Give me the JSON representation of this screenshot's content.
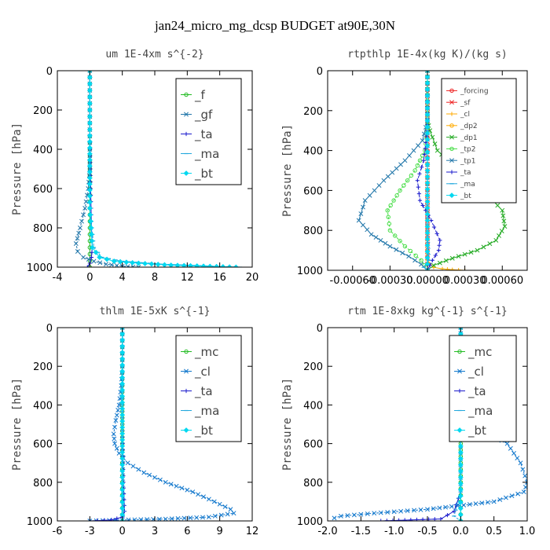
{
  "figure_title": "jan24_micro_mg_dcsp  BUDGET at90E,30N",
  "colors": {
    "f": "#22bb22",
    "gf": "#2277aa",
    "ta": "#1a1acc",
    "ma": "#22a8dd",
    "bt": "#00d8f0",
    "forcing": "#ee2222",
    "sf": "#ee2222",
    "cl_rt": "#ffaa00",
    "dp2": "#ffaa00",
    "dp1": "#22aa22",
    "tp2": "#44dd44",
    "tp1": "#2277aa",
    "mc": "#22bb22",
    "cl": "#1177cc"
  },
  "chart_data": [
    {
      "type": "line",
      "title": "um  1E-4xm s^{-2}",
      "ylabel": "Pressure [hPa]",
      "xlim": [
        -4,
        20
      ],
      "ylim": [
        1000,
        0
      ],
      "xticks": [
        -4,
        0,
        4,
        8,
        12,
        16,
        20
      ],
      "xtick_labels": [
        "-4",
        "0",
        "4",
        "8",
        "12",
        "16",
        "20"
      ],
      "yticks": [
        0,
        200,
        400,
        600,
        800,
        1000
      ],
      "ytick_labels": [
        "0",
        "200",
        "400",
        "600",
        "800",
        "1000"
      ],
      "legend": "top-right",
      "series": [
        {
          "name": "_f",
          "color": "#22bb22",
          "marker": "circle",
          "x": [
            0,
            0,
            0,
            0,
            0,
            0,
            0,
            0,
            0,
            0,
            0
          ],
          "y": [
            0,
            100,
            200,
            300,
            400,
            500,
            600,
            700,
            800,
            900,
            1000
          ]
        },
        {
          "name": "_gf",
          "color": "#2277aa",
          "marker": "x",
          "x": [
            0,
            0,
            0,
            -0.2,
            -0.6,
            -1.2,
            -1.7,
            -1.5,
            -0.8,
            0.5,
            2,
            4,
            6
          ],
          "y": [
            0,
            200,
            500,
            600,
            700,
            800,
            880,
            920,
            950,
            970,
            985,
            995,
            1000
          ]
        },
        {
          "name": "_ta",
          "color": "#1a1acc",
          "marker": "plus",
          "x": [
            0,
            0,
            0.1,
            0.2,
            0.3,
            0.2,
            0,
            -0.3
          ],
          "y": [
            0,
            300,
            600,
            800,
            900,
            950,
            980,
            1000
          ]
        },
        {
          "name": "_ma",
          "color": "#22a8dd",
          "marker": "dash",
          "x": [
            0,
            0,
            0,
            0.5,
            1.5,
            4,
            9,
            15,
            18.5
          ],
          "y": [
            0,
            300,
            700,
            900,
            950,
            970,
            985,
            995,
            1000
          ]
        },
        {
          "name": "_bt",
          "color": "#00d8f0",
          "marker": "diamond",
          "x": [
            0,
            0,
            0,
            0.3,
            1.2,
            3,
            6,
            10,
            14,
            18
          ],
          "y": [
            0,
            300,
            700,
            900,
            950,
            970,
            980,
            990,
            995,
            1000
          ]
        }
      ]
    },
    {
      "type": "line",
      "title": "rtpthlp  1E-4x(kg K)/(kg s)",
      "ylabel": "Pressure [hPa]",
      "xlim": [
        -0.0008,
        0.0008
      ],
      "ylim": [
        1000,
        0
      ],
      "xticks": [
        -0.0006,
        -0.0003,
        0,
        0.0003,
        0.0006
      ],
      "xtick_labels": [
        "-0.00060",
        "-0.00030",
        "0.00000",
        "0.00030",
        "0.00060"
      ],
      "yticks": [
        0,
        200,
        400,
        600,
        800,
        1000
      ],
      "ytick_labels": [
        "0",
        "200",
        "400",
        "600",
        "800",
        "1000"
      ],
      "legend": "top-right",
      "series": [
        {
          "name": "_forcing",
          "color": "#ee2222",
          "marker": "circle",
          "x": [
            0,
            0,
            0,
            0,
            0,
            0,
            0,
            0,
            0,
            0,
            0
          ],
          "y": [
            0,
            100,
            200,
            300,
            400,
            500,
            600,
            700,
            800,
            900,
            1000
          ]
        },
        {
          "name": "_sf",
          "color": "#ee2222",
          "marker": "x",
          "x": [
            0,
            0
          ],
          "y": [
            0,
            1000
          ]
        },
        {
          "name": "_cl",
          "color": "#ffaa00",
          "marker": "plus",
          "x": [
            0,
            0,
            0,
            5e-05,
            0.00012,
            0.0002,
            0.0003
          ],
          "y": [
            0,
            800,
            950,
            985,
            993,
            997,
            1000
          ]
        },
        {
          "name": "_dp2",
          "color": "#ffaa00",
          "marker": "circle",
          "x": [
            0,
            0
          ],
          "y": [
            0,
            1000
          ]
        },
        {
          "name": "_dp1",
          "color": "#22aa22",
          "marker": "x",
          "x": [
            0,
            0,
            2e-05,
            8e-05,
            0.00025,
            0.00045,
            0.0006,
            0.00062,
            0.00055,
            0.0004,
            0.0002,
            5e-05,
            0
          ],
          "y": [
            0,
            250,
            300,
            400,
            500,
            600,
            700,
            780,
            850,
            900,
            940,
            975,
            1000
          ]
        },
        {
          "name": "_tp2",
          "color": "#44dd44",
          "marker": "circle",
          "x": [
            0,
            0,
            -2e-05,
            -0.0001,
            -0.00022,
            -0.00032,
            -0.0003,
            -0.00018,
            -5e-05,
            0
          ],
          "y": [
            0,
            300,
            400,
            500,
            600,
            700,
            800,
            880,
            950,
            1000
          ]
        },
        {
          "name": "_tp1",
          "color": "#2277aa",
          "marker": "x",
          "x": [
            0,
            0,
            -4e-05,
            -0.00018,
            -0.00035,
            -0.0005,
            -0.00055,
            -0.00045,
            -0.0003,
            -0.00015,
            -5e-05,
            0
          ],
          "y": [
            0,
            250,
            350,
            450,
            550,
            650,
            750,
            820,
            880,
            930,
            970,
            1000
          ]
        },
        {
          "name": "_ta",
          "color": "#1a1acc",
          "marker": "plus",
          "x": [
            0,
            0,
            -3e-05,
            -8e-05,
            -6e-05,
            3e-05,
            0.0001,
            9e-05,
            4e-05,
            0
          ],
          "y": [
            0,
            300,
            450,
            550,
            650,
            750,
            850,
            900,
            950,
            1000
          ]
        },
        {
          "name": "_ma",
          "color": "#22a8dd",
          "marker": "dash",
          "x": [
            0,
            0,
            1e-05,
            -3e-05,
            0
          ],
          "y": [
            0,
            800,
            950,
            985,
            1000
          ]
        },
        {
          "name": "_bt",
          "color": "#00d8f0",
          "marker": "diamond",
          "x": [
            0,
            0
          ],
          "y": [
            0,
            1000
          ]
        }
      ]
    },
    {
      "type": "line",
      "title": "thlm  1E-5xK s^{-1}",
      "ylabel": "Pressure [hPa]",
      "xlim": [
        -6,
        12
      ],
      "ylim": [
        1000,
        0
      ],
      "xticks": [
        -6,
        -3,
        0,
        3,
        6,
        9,
        12
      ],
      "xtick_labels": [
        "-6",
        "-3",
        "0",
        "3",
        "6",
        "9",
        "12"
      ],
      "yticks": [
        0,
        200,
        400,
        600,
        800,
        1000
      ],
      "ytick_labels": [
        "0",
        "200",
        "400",
        "600",
        "800",
        "1000"
      ],
      "legend": "top-right",
      "series": [
        {
          "name": "_mc",
          "color": "#22bb22",
          "marker": "circle",
          "x": [
            0,
            0,
            0,
            0,
            0,
            0,
            0,
            0,
            0,
            0,
            0
          ],
          "y": [
            0,
            100,
            200,
            300,
            400,
            500,
            600,
            700,
            800,
            900,
            1000
          ]
        },
        {
          "name": "_cl",
          "color": "#1177cc",
          "marker": "x",
          "x": [
            0,
            0,
            -0.1,
            -0.3,
            -0.6,
            -0.8,
            -0.7,
            -0.3,
            0.5,
            2,
            4,
            6.5,
            8.5,
            10,
            10.3,
            8,
            4,
            0,
            -3
          ],
          "y": [
            0,
            200,
            300,
            400,
            480,
            550,
            600,
            650,
            700,
            750,
            800,
            850,
            900,
            940,
            960,
            980,
            990,
            995,
            1000
          ]
        },
        {
          "name": "_ta",
          "color": "#1a1acc",
          "marker": "plus",
          "x": [
            0,
            0,
            0.1,
            0.2,
            0,
            -1,
            -3
          ],
          "y": [
            0,
            500,
            800,
            950,
            980,
            995,
            1000
          ]
        },
        {
          "name": "_ma",
          "color": "#22a8dd",
          "marker": "dash",
          "x": [
            0,
            0,
            0.1,
            0
          ],
          "y": [
            0,
            500,
            950,
            1000
          ]
        },
        {
          "name": "_bt",
          "color": "#00d8f0",
          "marker": "diamond",
          "x": [
            0,
            0
          ],
          "y": [
            0,
            1000
          ]
        }
      ]
    },
    {
      "type": "line",
      "title": "rtm  1E-8xkg kg^{-1} s^{-1}",
      "ylabel": "Pressure [hPa]",
      "xlim": [
        -2.0,
        1.0
      ],
      "ylim": [
        1000,
        0
      ],
      "xticks": [
        -2.0,
        -1.5,
        -1.0,
        -0.5,
        0.0,
        0.5,
        1.0
      ],
      "xtick_labels": [
        "-2.0",
        "-1.5",
        "-1.0",
        "-0.5",
        "0.0",
        "0.5",
        "1.0"
      ],
      "yticks": [
        0,
        200,
        400,
        600,
        800,
        1000
      ],
      "ytick_labels": [
        "0",
        "200",
        "400",
        "600",
        "800",
        "1000"
      ],
      "legend": "top-right",
      "series": [
        {
          "name": "_mc",
          "color": "#22bb22",
          "marker": "circle",
          "x": [
            0,
            0,
            0,
            0,
            0,
            0,
            0,
            0,
            0,
            0,
            0
          ],
          "y": [
            0,
            100,
            200,
            300,
            400,
            500,
            600,
            700,
            800,
            900,
            1000
          ]
        },
        {
          "name": "_cl",
          "color": "#1177cc",
          "marker": "x",
          "x": [
            0,
            0,
            0.05,
            0.1,
            0.1,
            0.12,
            0.25,
            0.45,
            0.7,
            0.9,
            1.0,
            0.95,
            0.5,
            -0.5,
            -1.3,
            -1.8,
            -1.9
          ],
          "y": [
            0,
            150,
            200,
            300,
            400,
            450,
            500,
            550,
            600,
            700,
            800,
            850,
            900,
            940,
            960,
            975,
            985
          ]
        },
        {
          "name": "_ta",
          "color": "#1a1acc",
          "marker": "plus",
          "x": [
            0,
            0,
            -0.1,
            -0.3,
            -1.2
          ],
          "y": [
            0,
            850,
            950,
            990,
            1000
          ]
        },
        {
          "name": "_ma",
          "color": "#22a8dd",
          "marker": "dash",
          "x": [
            0,
            0,
            -0.1,
            0
          ],
          "y": [
            0,
            850,
            975,
            1000
          ]
        },
        {
          "name": "_bt",
          "color": "#00d8f0",
          "marker": "diamond",
          "x": [
            0,
            0
          ],
          "y": [
            0,
            1000
          ]
        }
      ]
    }
  ]
}
